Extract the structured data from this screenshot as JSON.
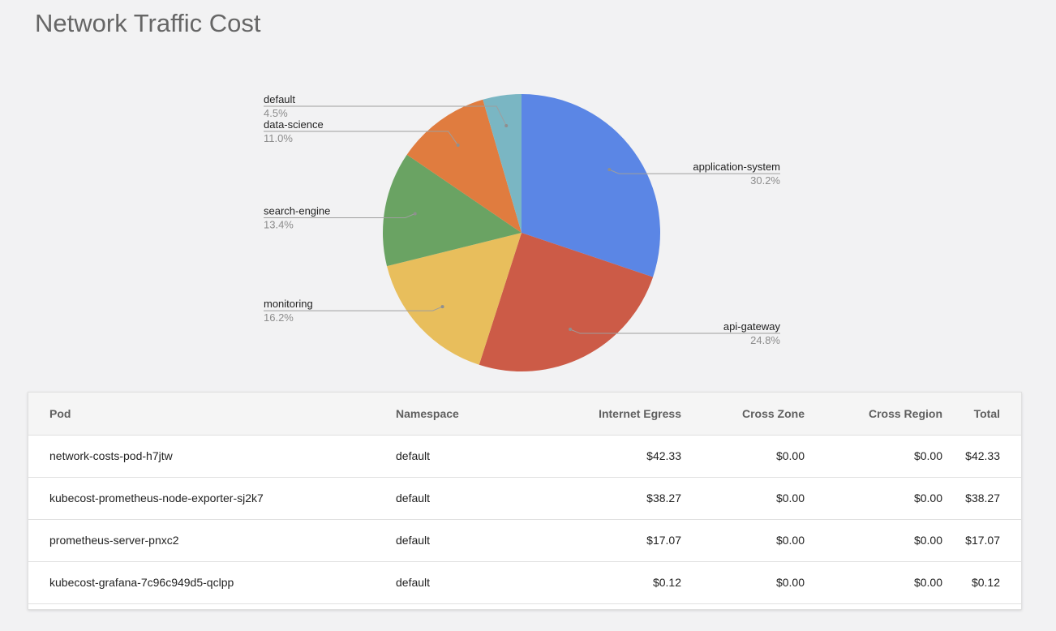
{
  "page": {
    "title": "Network Traffic Cost"
  },
  "chart_data": {
    "type": "pie",
    "slices": [
      {
        "label": "application-system",
        "value": 30.2,
        "display": "30.2%",
        "color": "#5b86e5"
      },
      {
        "label": "api-gateway",
        "value": 24.8,
        "display": "24.8%",
        "color": "#cc5b47"
      },
      {
        "label": "monitoring",
        "value": 16.2,
        "display": "16.2%",
        "color": "#e8be5c"
      },
      {
        "label": "search-engine",
        "value": 13.4,
        "display": "13.4%",
        "color": "#6aa363"
      },
      {
        "label": "data-science",
        "value": 11.0,
        "display": "11.0%",
        "color": "#e07c3f"
      },
      {
        "label": "default",
        "value": 4.5,
        "display": "4.5%",
        "color": "#7ab6c3"
      }
    ]
  },
  "table": {
    "headers": {
      "pod": "Pod",
      "namespace": "Namespace",
      "internet_egress": "Internet Egress",
      "cross_zone": "Cross Zone",
      "cross_region": "Cross Region",
      "total": "Total"
    },
    "rows": [
      {
        "pod": "network-costs-pod-h7jtw",
        "namespace": "default",
        "internet_egress": "$42.33",
        "cross_zone": "$0.00",
        "cross_region": "$0.00",
        "total": "$42.33"
      },
      {
        "pod": "kubecost-prometheus-node-exporter-sj2k7",
        "namespace": "default",
        "internet_egress": "$38.27",
        "cross_zone": "$0.00",
        "cross_region": "$0.00",
        "total": "$38.27"
      },
      {
        "pod": "prometheus-server-pnxc2",
        "namespace": "default",
        "internet_egress": "$17.07",
        "cross_zone": "$0.00",
        "cross_region": "$0.00",
        "total": "$17.07"
      },
      {
        "pod": "kubecost-grafana-7c96c949d5-qclpp",
        "namespace": "default",
        "internet_egress": "$0.12",
        "cross_zone": "$0.00",
        "cross_region": "$0.00",
        "total": "$0.12"
      }
    ]
  }
}
